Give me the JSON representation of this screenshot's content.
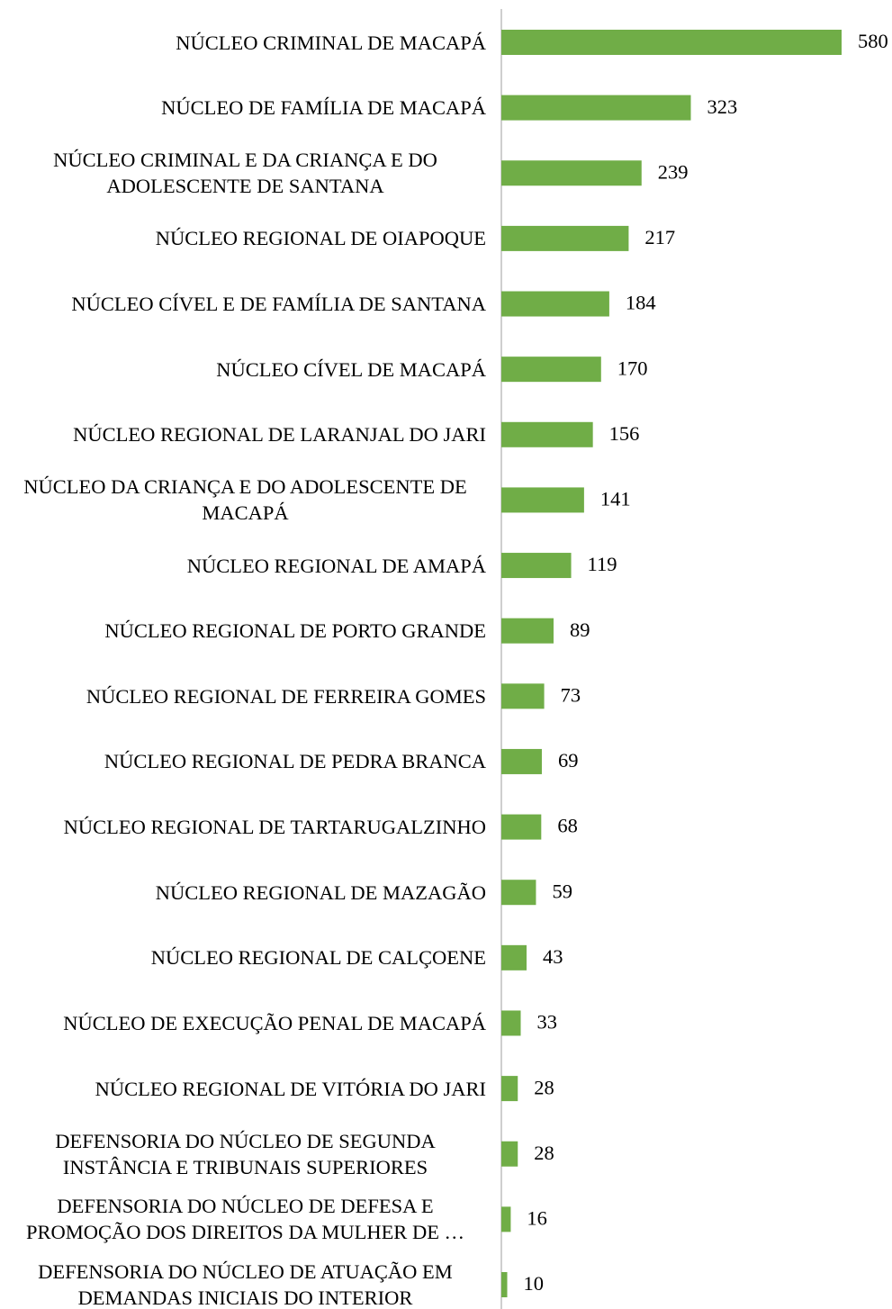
{
  "chart_data": {
    "type": "bar",
    "orientation": "horizontal",
    "categories": [
      "NÚCLEO CRIMINAL DE MACAPÁ",
      "NÚCLEO DE FAMÍLIA DE MACAPÁ",
      "NÚCLEO CRIMINAL E DA CRIANÇA E DO ADOLESCENTE DE SANTANA",
      "NÚCLEO REGIONAL DE OIAPOQUE",
      "NÚCLEO CÍVEL E DE FAMÍLIA DE SANTANA",
      "NÚCLEO CÍVEL DE MACAPÁ",
      "NÚCLEO REGIONAL DE LARANJAL DO JARI",
      "NÚCLEO DA CRIANÇA E DO ADOLESCENTE DE MACAPÁ",
      "NÚCLEO REGIONAL DE AMAPÁ",
      "NÚCLEO REGIONAL DE PORTO GRANDE",
      "NÚCLEO REGIONAL DE FERREIRA GOMES",
      "NÚCLEO REGIONAL DE PEDRA BRANCA",
      "NÚCLEO REGIONAL DE TARTARUGALZINHO",
      "NÚCLEO REGIONAL DE MAZAGÃO",
      "NÚCLEO REGIONAL DE CALÇOENE",
      "NÚCLEO DE EXECUÇÃO PENAL DE MACAPÁ",
      "NÚCLEO REGIONAL DE VITÓRIA DO JARI",
      "DEFENSORIA DO NÚCLEO DE SEGUNDA INSTÂNCIA E TRIBUNAIS SUPERIORES",
      "DEFENSORIA DO NÚCLEO DE DEFESA E PROMOÇÃO DOS DIREITOS DA MULHER DE …",
      "DEFENSORIA DO NÚCLEO DE ATUAÇÃO EM DEMANDAS INICIAIS DO INTERIOR"
    ],
    "values": [
      580,
      323,
      239,
      217,
      184,
      170,
      156,
      141,
      119,
      89,
      73,
      69,
      68,
      59,
      43,
      33,
      28,
      28,
      16,
      10
    ],
    "color": "#70ad47",
    "xlim": [
      0,
      580
    ]
  }
}
